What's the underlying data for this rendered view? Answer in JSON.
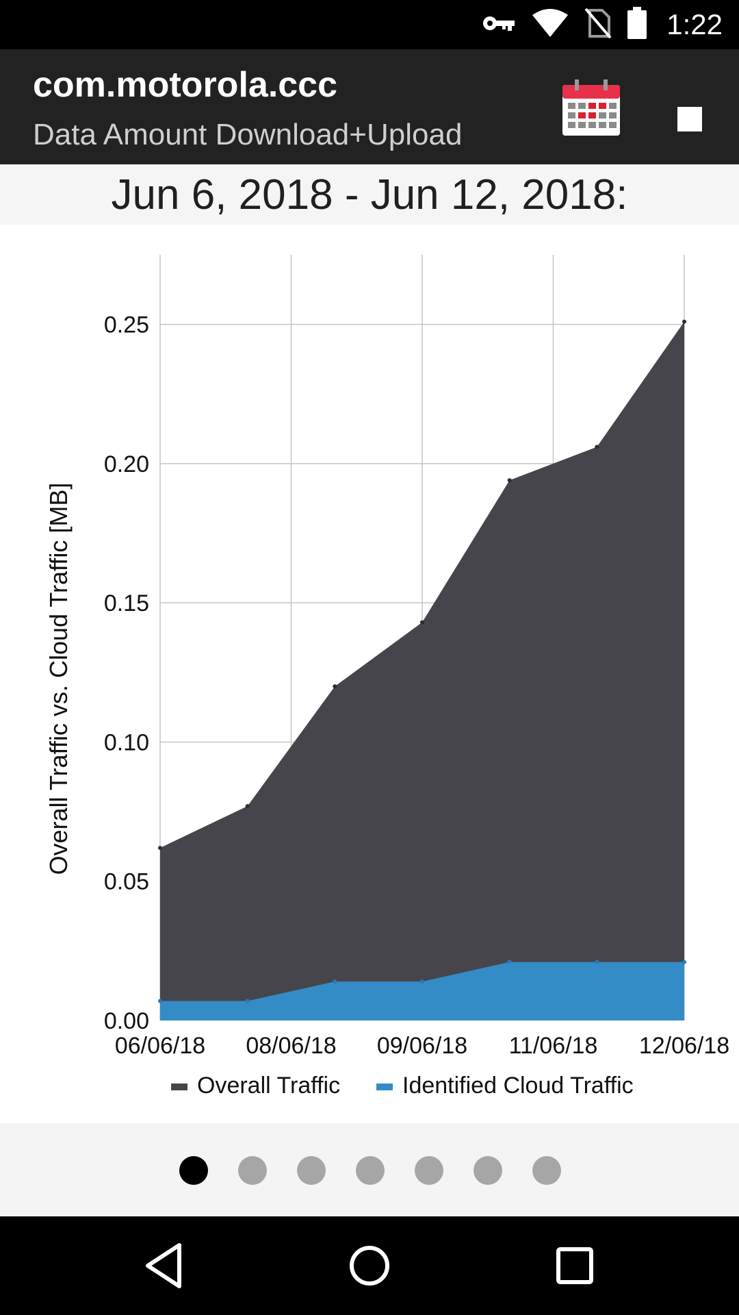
{
  "status_bar": {
    "time": "1:22",
    "icons": [
      "key-icon",
      "wifi-icon",
      "no-sim-icon",
      "battery-icon"
    ]
  },
  "app_bar": {
    "title": "com.motorola.ccc",
    "subtitle": "Data Amount Download+Upload",
    "actions": [
      "calendar-icon",
      "stop-icon"
    ]
  },
  "date_range": "Jun 6, 2018 - Jun 12, 2018:",
  "chart_data": {
    "type": "area",
    "ylabel": "Overall Traffic vs. Cloud Traffic [MB]",
    "ylim": [
      0,
      0.275
    ],
    "yticks": [
      "0.00",
      "0.05",
      "0.10",
      "0.15",
      "0.20",
      "0.25"
    ],
    "x_tick_labels": [
      "06/06/18",
      "08/06/18",
      "09/06/18",
      "11/06/18",
      "12/06/18"
    ],
    "grid": true,
    "legend_position": "bottom",
    "series": [
      {
        "name": "Overall Traffic",
        "color": "#46454b",
        "values": [
          0.062,
          0.077,
          0.12,
          0.143,
          0.194,
          0.206,
          0.251
        ]
      },
      {
        "name": "Identified Cloud Traffic",
        "color": "#338cc6",
        "values": [
          0.007,
          0.007,
          0.014,
          0.014,
          0.021,
          0.021,
          0.021
        ]
      }
    ]
  },
  "pager": {
    "count": 7,
    "active_index": 0
  },
  "nav_bar": {
    "buttons": [
      "back-icon",
      "home-icon",
      "recents-icon"
    ]
  }
}
